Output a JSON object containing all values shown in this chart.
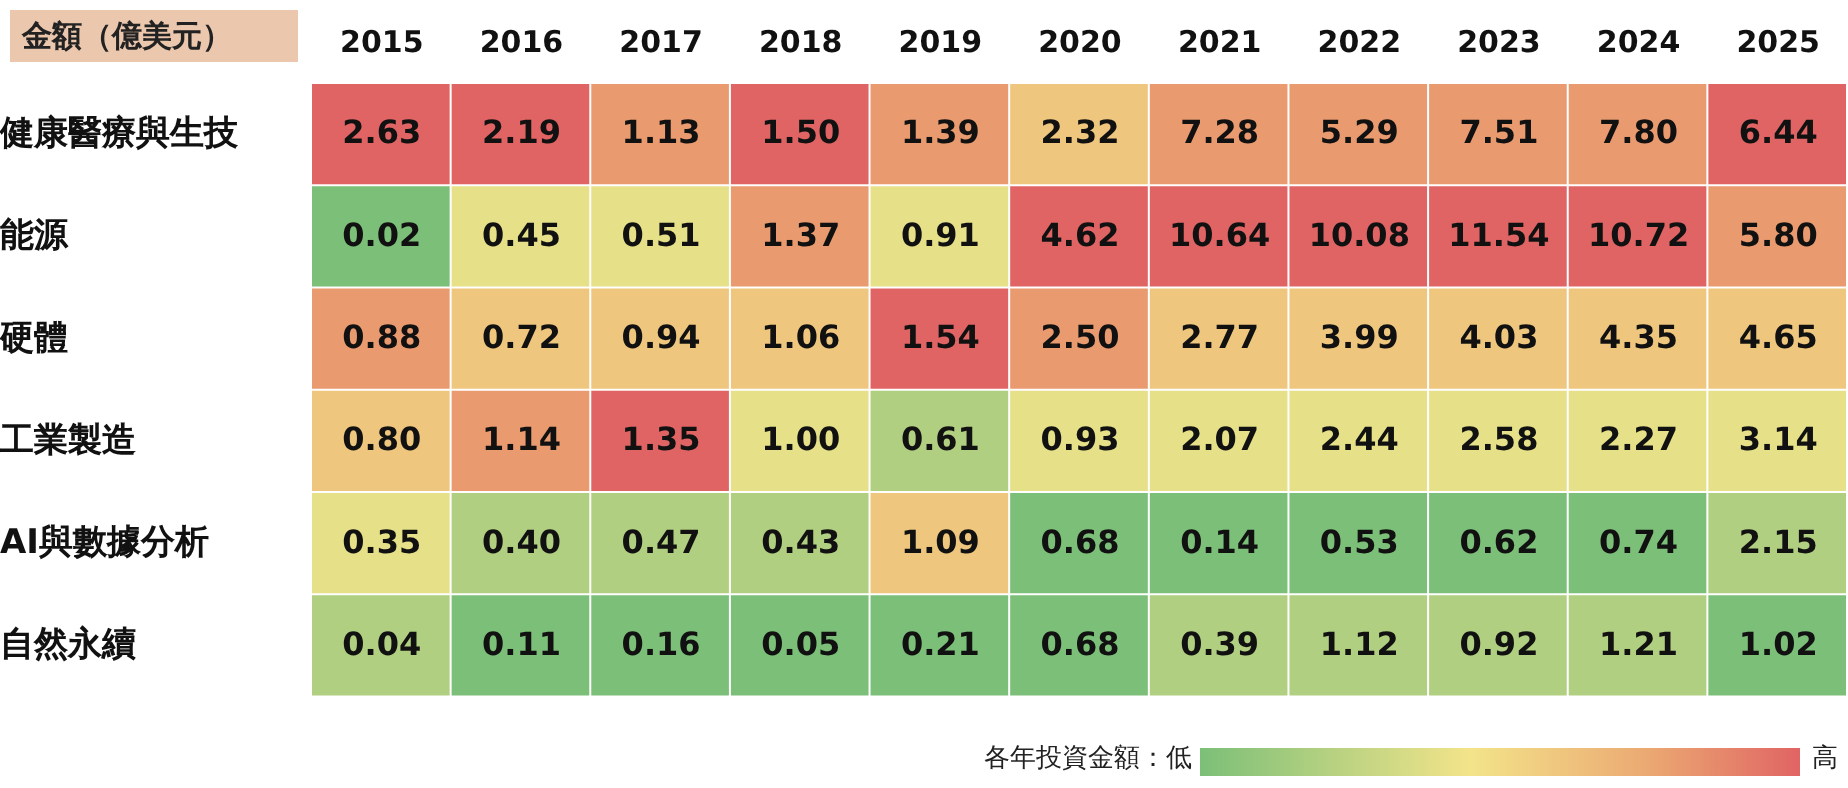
{
  "chart_data": {
    "type": "heatmap",
    "title": "金額（億美元）",
    "categories": [
      "2015",
      "2016",
      "2017",
      "2018",
      "2019",
      "2020",
      "2021",
      "2022",
      "2023",
      "2024",
      "2025"
    ],
    "y_categories": [
      "健康醫療與生技",
      "能源",
      "硬體",
      "工業製造",
      "AI與數據分析",
      "自然永續"
    ],
    "cells": [
      [
        2.63,
        2.19,
        1.13,
        1.5,
        1.39,
        2.32,
        7.28,
        5.29,
        7.51,
        7.8,
        6.44
      ],
      [
        0.02,
        0.45,
        0.51,
        1.37,
        0.91,
        4.62,
        10.64,
        10.08,
        11.54,
        10.72,
        5.8
      ],
      [
        0.88,
        0.72,
        0.94,
        1.06,
        1.54,
        2.5,
        2.77,
        3.99,
        4.03,
        4.35,
        4.65
      ],
      [
        0.8,
        1.14,
        1.35,
        1.0,
        0.61,
        0.93,
        2.07,
        2.44,
        2.58,
        2.27,
        3.14
      ],
      [
        0.35,
        0.4,
        0.47,
        0.43,
        1.09,
        0.68,
        0.14,
        0.53,
        0.62,
        0.74,
        2.15
      ],
      [
        0.04,
        0.11,
        0.16,
        0.05,
        0.21,
        0.68,
        0.39,
        1.12,
        0.92,
        1.21,
        1.02
      ]
    ],
    "cell_labels": [
      [
        "2.63",
        "2.19",
        "1.13",
        "1.50",
        "1.39",
        "2.32",
        "7.28",
        "5.29",
        "7.51",
        "7.80",
        "6.44"
      ],
      [
        "0.02",
        "0.45",
        "0.51",
        "1.37",
        "0.91",
        "4.62",
        "10.64",
        "10.08",
        "11.54",
        "10.72",
        "5.80"
      ],
      [
        "0.88",
        "0.72",
        "0.94",
        "1.06",
        "1.54",
        "2.50",
        "2.77",
        "3.99",
        "4.03",
        "4.35",
        "4.65"
      ],
      [
        "0.80",
        "1.14",
        "1.35",
        "1.00",
        "0.61",
        "0.93",
        "2.07",
        "2.44",
        "2.58",
        "2.27",
        "3.14"
      ],
      [
        "0.35",
        "0.40",
        "0.47",
        "0.43",
        "1.09",
        "0.68",
        "0.14",
        "0.53",
        "0.62",
        "0.74",
        "2.15"
      ],
      [
        "0.04",
        "0.11",
        "0.16",
        "0.05",
        "0.21",
        "0.68",
        "0.39",
        "1.12",
        "0.92",
        "1.21",
        "1.02"
      ]
    ],
    "annotations": [
      "各年投資金額：低",
      "高"
    ]
  }
}
